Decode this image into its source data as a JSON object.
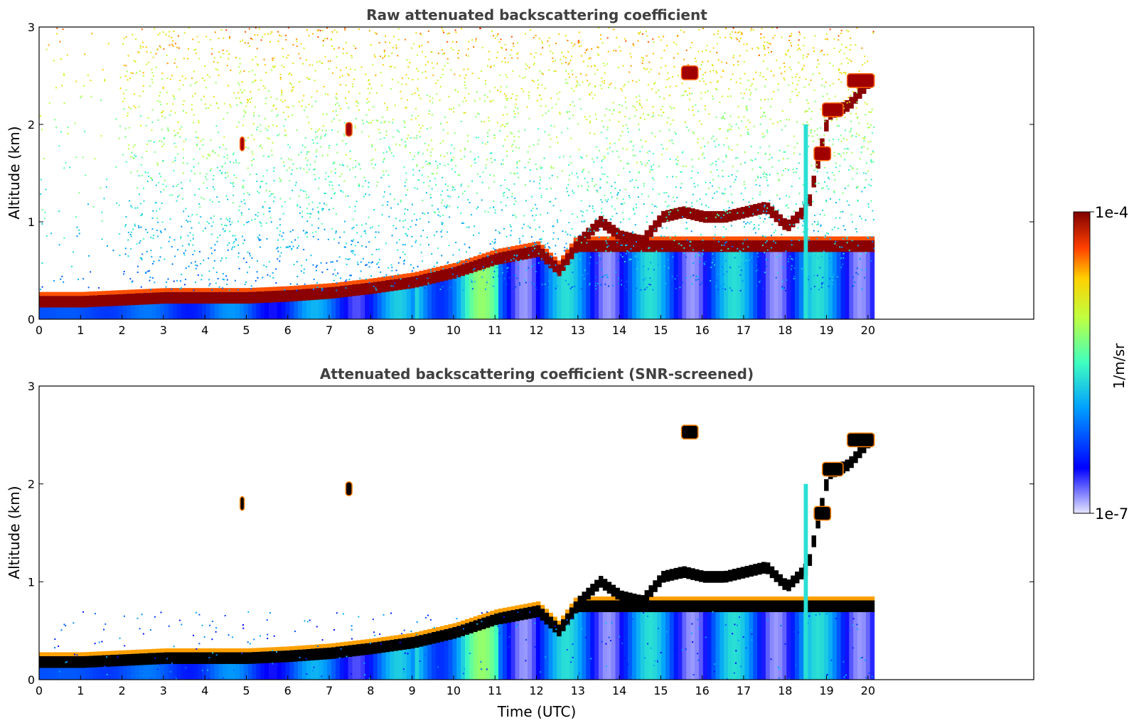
{
  "chart_data": [
    {
      "type": "heatmap",
      "title": "Raw attenuated backscattering coefficient",
      "xlabel": "",
      "ylabel": "Altitude (km)",
      "xlim": [
        0,
        24
      ],
      "ylim": [
        0,
        3
      ],
      "x_ticks": [
        "0",
        "1",
        "2",
        "3",
        "4",
        "5",
        "6",
        "7",
        "8",
        "9",
        "10",
        "11",
        "12",
        "13",
        "14",
        "15",
        "16",
        "17",
        "18",
        "19",
        "20"
      ],
      "y_ticks": [
        "0",
        "1",
        "2",
        "3"
      ],
      "data_end_time": 20.15,
      "layer_trace": {
        "time": [
          0,
          1,
          2,
          3,
          4,
          5,
          6,
          7,
          8,
          9,
          10,
          11,
          12,
          12.5,
          13,
          13.5,
          14,
          14.5,
          15,
          15.5,
          16,
          16.5,
          17,
          17.5,
          18,
          18.5,
          19,
          19.5,
          20
        ],
        "altitude_km": [
          0.18,
          0.18,
          0.2,
          0.22,
          0.22,
          0.22,
          0.24,
          0.27,
          0.32,
          0.38,
          0.48,
          0.62,
          0.7,
          0.5,
          0.8,
          1.0,
          0.85,
          0.8,
          1.05,
          1.1,
          1.05,
          1.05,
          1.1,
          1.15,
          0.95,
          1.15,
          2.1,
          2.2,
          2.45
        ]
      },
      "elevated_layers": [
        {
          "t0": 15.5,
          "t1": 15.9,
          "altitude_km": 2.53
        },
        {
          "t0": 19.5,
          "t1": 20.15,
          "altitude_km": 2.45
        },
        {
          "t0": 18.9,
          "t1": 19.4,
          "altitude_km": 2.15
        },
        {
          "t0": 18.7,
          "t1": 19.1,
          "altitude_km": 1.7
        },
        {
          "t0": 4.85,
          "t1": 4.95,
          "altitude_km": 1.8
        },
        {
          "t0": 7.4,
          "t1": 7.55,
          "altitude_km": 1.95
        }
      ],
      "screened": false
    },
    {
      "type": "heatmap",
      "title": "Attenuated backscattering coefficient (SNR-screened)",
      "xlabel": "Time (UTC)",
      "ylabel": "Altitude (km)",
      "xlim": [
        0,
        24
      ],
      "ylim": [
        0,
        3
      ],
      "x_ticks": [
        "0",
        "1",
        "2",
        "3",
        "4",
        "5",
        "6",
        "7",
        "8",
        "9",
        "10",
        "11",
        "12",
        "13",
        "14",
        "15",
        "16",
        "17",
        "18",
        "19",
        "20"
      ],
      "y_ticks": [
        "0",
        "1",
        "2",
        "3"
      ],
      "data_end_time": 20.15,
      "screened": true
    }
  ],
  "colorbar": {
    "label": "1/m/sr",
    "max_label": "1e-4",
    "min_label": "1e-7",
    "colormap": "jet",
    "scale": "log"
  },
  "colors": {
    "background": "#ffffff",
    "axis": "#000000",
    "title": "#404040"
  }
}
